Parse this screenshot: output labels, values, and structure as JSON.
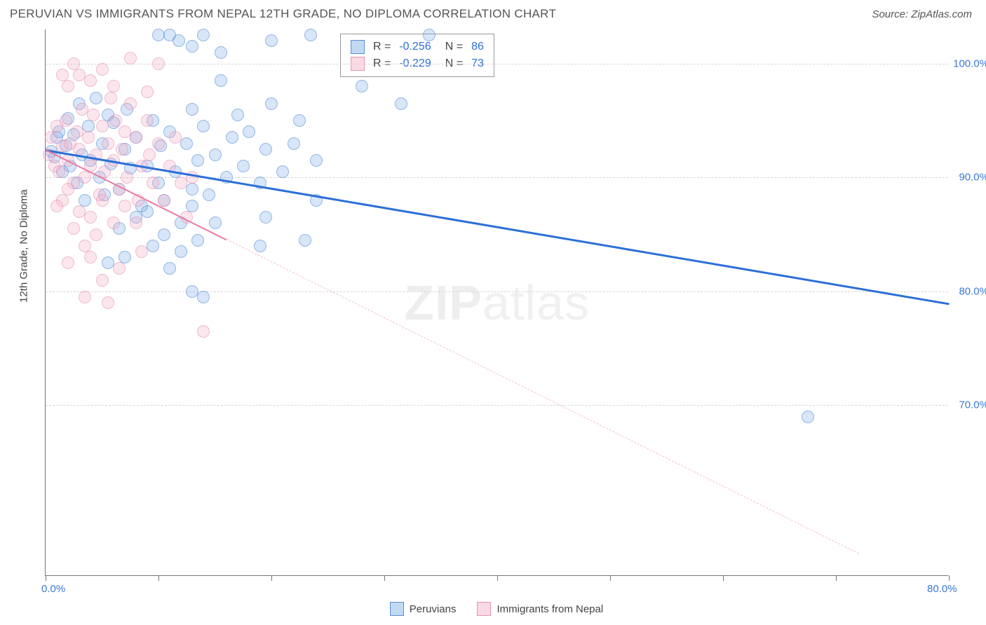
{
  "header": {
    "title": "PERUVIAN VS IMMIGRANTS FROM NEPAL 12TH GRADE, NO DIPLOMA CORRELATION CHART",
    "source": "Source: ZipAtlas.com"
  },
  "chart": {
    "type": "scatter",
    "y_axis_title": "12th Grade, No Diploma",
    "xlim": [
      0,
      80
    ],
    "ylim": [
      55,
      103
    ],
    "x_ticks": [
      0,
      10,
      20,
      30,
      40,
      50,
      60,
      70,
      80
    ],
    "x_tick_labels": {
      "0": "0.0%",
      "80": "80.0%"
    },
    "y_ticks": [
      70,
      80,
      90,
      100
    ],
    "y_tick_labels": {
      "70": "70.0%",
      "80": "80.0%",
      "90": "90.0%",
      "100": "100.0%"
    },
    "grid_color": "#d6d6d6",
    "background_color": "#ffffff",
    "axis_color": "#777777",
    "tick_label_color": "#3b78d8",
    "series": [
      {
        "name": "Peruvians",
        "color_fill": "rgba(120,170,230,0.45)",
        "color_stroke": "#5b8fd6",
        "marker_size": 18,
        "R": "-0.256",
        "N": "86",
        "trend": {
          "x1": 0,
          "y1": 92.5,
          "x2": 80,
          "y2": 79,
          "color": "#2b6fd6",
          "width": 3,
          "dashed_after_x": null
        },
        "points": [
          [
            0.5,
            92.3
          ],
          [
            0.8,
            91.8
          ],
          [
            1.0,
            93.5
          ],
          [
            1.2,
            94.0
          ],
          [
            1.5,
            90.5
          ],
          [
            1.8,
            92.8
          ],
          [
            2.0,
            95.2
          ],
          [
            2.2,
            91.0
          ],
          [
            2.5,
            93.8
          ],
          [
            2.8,
            89.5
          ],
          [
            3.0,
            96.5
          ],
          [
            3.2,
            92.0
          ],
          [
            3.5,
            88.0
          ],
          [
            3.8,
            94.5
          ],
          [
            4.0,
            91.5
          ],
          [
            4.5,
            97.0
          ],
          [
            4.8,
            90.0
          ],
          [
            5.0,
            93.0
          ],
          [
            5.2,
            88.5
          ],
          [
            5.5,
            95.5
          ],
          [
            5.8,
            91.2
          ],
          [
            6.0,
            94.8
          ],
          [
            6.5,
            89.0
          ],
          [
            7.0,
            92.5
          ],
          [
            7.2,
            96.0
          ],
          [
            7.5,
            90.8
          ],
          [
            8.0,
            93.5
          ],
          [
            8.5,
            87.5
          ],
          [
            9.0,
            91.0
          ],
          [
            9.5,
            95.0
          ],
          [
            10.0,
            89.5
          ],
          [
            10.0,
            102.5
          ],
          [
            10.2,
            92.8
          ],
          [
            10.5,
            88.0
          ],
          [
            11.0,
            94.0
          ],
          [
            11.5,
            90.5
          ],
          [
            11.0,
            102.5
          ],
          [
            12.0,
            86.0
          ],
          [
            12.5,
            93.0
          ],
          [
            11.8,
            102.0
          ],
          [
            13.0,
            89.0
          ],
          [
            13.0,
            96.0
          ],
          [
            13.5,
            91.5
          ],
          [
            13.0,
            101.5
          ],
          [
            14.0,
            94.5
          ],
          [
            14.5,
            88.5
          ],
          [
            14.0,
            102.5
          ],
          [
            15.0,
            92.0
          ],
          [
            15.5,
            98.5
          ],
          [
            16.0,
            90.0
          ],
          [
            16.5,
            93.5
          ],
          [
            15.5,
            101.0
          ],
          [
            17.0,
            95.5
          ],
          [
            17.5,
            91.0
          ],
          [
            18.0,
            94.0
          ],
          [
            19.0,
            89.5
          ],
          [
            19.5,
            92.5
          ],
          [
            20.0,
            96.5
          ],
          [
            20.0,
            102.0
          ],
          [
            21.0,
            90.5
          ],
          [
            22.0,
            93.0
          ],
          [
            22.5,
            95.0
          ],
          [
            23.0,
            84.5
          ],
          [
            24.0,
            91.5
          ],
          [
            24.0,
            88.0
          ],
          [
            8.0,
            86.5
          ],
          [
            10.5,
            85.0
          ],
          [
            12.0,
            83.5
          ],
          [
            9.5,
            84.0
          ],
          [
            6.5,
            85.5
          ],
          [
            13.5,
            84.5
          ],
          [
            15.0,
            86.0
          ],
          [
            11.0,
            82.0
          ],
          [
            13.0,
            80.0
          ],
          [
            7.0,
            83.0
          ],
          [
            5.5,
            82.5
          ],
          [
            13.0,
            87.5
          ],
          [
            9.0,
            87.0
          ],
          [
            23.5,
            102.5
          ],
          [
            31.5,
            96.5
          ],
          [
            34.0,
            102.5
          ],
          [
            28.0,
            98.0
          ],
          [
            19.0,
            84.0
          ],
          [
            19.5,
            86.5
          ],
          [
            67.5,
            69.0
          ],
          [
            14.0,
            79.5
          ]
        ]
      },
      {
        "name": "Immigrants from Nepal",
        "color_fill": "rgba(245,170,195,0.45)",
        "color_stroke": "#e695b3",
        "marker_size": 18,
        "R": "-0.229",
        "N": "73",
        "trend": {
          "x1": 0,
          "y1": 92.5,
          "x2": 72,
          "y2": 57,
          "color": "#e97ba2",
          "width": 2.5,
          "dashed_after_x": 16
        },
        "points": [
          [
            0.3,
            92.0
          ],
          [
            0.5,
            93.5
          ],
          [
            0.8,
            91.0
          ],
          [
            1.0,
            94.5
          ],
          [
            1.2,
            90.5
          ],
          [
            1.5,
            92.8
          ],
          [
            1.8,
            95.0
          ],
          [
            2.0,
            91.5
          ],
          [
            2.2,
            93.0
          ],
          [
            2.5,
            89.5
          ],
          [
            2.8,
            94.0
          ],
          [
            3.0,
            92.5
          ],
          [
            3.2,
            96.0
          ],
          [
            3.5,
            90.0
          ],
          [
            3.8,
            93.5
          ],
          [
            4.0,
            91.0
          ],
          [
            4.2,
            95.5
          ],
          [
            4.5,
            92.0
          ],
          [
            4.8,
            88.5
          ],
          [
            5.0,
            94.5
          ],
          [
            5.2,
            90.5
          ],
          [
            5.5,
            93.0
          ],
          [
            5.8,
            97.0
          ],
          [
            6.0,
            91.5
          ],
          [
            6.2,
            95.0
          ],
          [
            6.5,
            89.0
          ],
          [
            6.8,
            92.5
          ],
          [
            7.0,
            94.0
          ],
          [
            7.2,
            90.0
          ],
          [
            7.5,
            96.5
          ],
          [
            8.0,
            93.5
          ],
          [
            8.2,
            88.0
          ],
          [
            8.5,
            91.0
          ],
          [
            9.0,
            95.0
          ],
          [
            9.2,
            92.0
          ],
          [
            9.5,
            89.5
          ],
          [
            10.0,
            93.0
          ],
          [
            7.5,
            100.5
          ],
          [
            10.0,
            100.0
          ],
          [
            9.0,
            97.5
          ],
          [
            1.5,
            88.0
          ],
          [
            2.0,
            89.0
          ],
          [
            3.0,
            87.0
          ],
          [
            4.0,
            86.5
          ],
          [
            5.0,
            88.0
          ],
          [
            6.0,
            86.0
          ],
          [
            2.5,
            85.5
          ],
          [
            3.5,
            84.0
          ],
          [
            7.0,
            87.5
          ],
          [
            4.5,
            85.0
          ],
          [
            8.0,
            86.0
          ],
          [
            1.0,
            87.5
          ],
          [
            2.0,
            98.0
          ],
          [
            3.0,
            99.0
          ],
          [
            4.0,
            98.5
          ],
          [
            5.0,
            99.5
          ],
          [
            1.5,
            99.0
          ],
          [
            2.5,
            100.0
          ],
          [
            6.0,
            98.0
          ],
          [
            4.0,
            83.0
          ],
          [
            5.0,
            81.0
          ],
          [
            2.0,
            82.5
          ],
          [
            6.5,
            82.0
          ],
          [
            3.5,
            79.5
          ],
          [
            5.5,
            79.0
          ],
          [
            14.0,
            76.5
          ],
          [
            12.0,
            89.5
          ],
          [
            11.0,
            91.0
          ],
          [
            11.5,
            93.5
          ],
          [
            10.5,
            88.0
          ],
          [
            12.5,
            86.5
          ],
          [
            13.0,
            90.0
          ],
          [
            8.5,
            83.5
          ]
        ]
      }
    ],
    "legend": {
      "items": [
        "Peruvians",
        "Immigrants from Nepal"
      ]
    },
    "watermark": "ZIPatlas"
  }
}
